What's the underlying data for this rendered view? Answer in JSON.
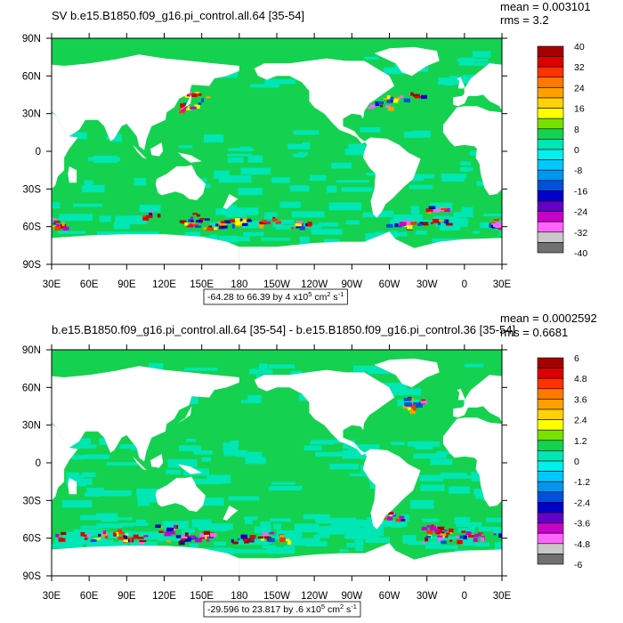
{
  "chart_data": [
    {
      "type": "heatmap",
      "title": "SV b.e15.B1850.f09_g16.pi_control.all.64 [35-54]",
      "stats": [
        "mean = 0.003101",
        "rms = 3.2"
      ],
      "x_ticks": [
        "30E",
        "60E",
        "90E",
        "120E",
        "150E",
        "180",
        "150W",
        "120W",
        "90W",
        "60W",
        "30W",
        "0",
        "30E"
      ],
      "y_ticks": [
        "90N",
        "60N",
        "30N",
        "0",
        "30S",
        "60S",
        "90S"
      ],
      "colorbar": {
        "labels": [
          "40",
          "32",
          "24",
          "16",
          "8",
          "0",
          "-8",
          "-16",
          "-24",
          "-32",
          "-40"
        ],
        "colors": [
          "#a50000",
          "#dc0000",
          "#ff3200",
          "#ff7800",
          "#ffa000",
          "#ffd200",
          "#ffff00",
          "#78e100",
          "#14d250",
          "#00e6b4",
          "#00f0f0",
          "#00c8ff",
          "#0096f0",
          "#0050dc",
          "#0000c8",
          "#6400c8",
          "#c800c8",
          "#ff64ff",
          "#c8c8c8",
          "#707070"
        ]
      },
      "range_note": {
        "prefix": "-64.28 to 66.39 by 4 x10",
        "exp": "5",
        "unit": " cm",
        "unit_exp": "2",
        "tail": " s",
        "tail_exp": "-1"
      }
    },
    {
      "type": "heatmap",
      "title": "b.e15.B1850.f09_g16.pi_control.all.64 [35-54] - b.e15.B1850.f09_g16.pi_control.36 [35-54]",
      "stats": [
        "mean = 0.0002592",
        "rms = 0.6681"
      ],
      "x_ticks": [
        "30E",
        "60E",
        "90E",
        "120E",
        "150E",
        "180",
        "150W",
        "120W",
        "90W",
        "60W",
        "30W",
        "0",
        "30E"
      ],
      "y_ticks": [
        "90N",
        "60N",
        "30N",
        "0",
        "30S",
        "60S",
        "90S"
      ],
      "colorbar": {
        "labels": [
          "6",
          "4.8",
          "3.6",
          "2.4",
          "1.2",
          "0",
          "-1.2",
          "-2.4",
          "-3.6",
          "-4.8",
          "-6"
        ],
        "colors": [
          "#a50000",
          "#dc0000",
          "#ff3200",
          "#ff7800",
          "#ffa000",
          "#ffd200",
          "#ffff00",
          "#78e100",
          "#14d250",
          "#00e6b4",
          "#00f0f0",
          "#00c8ff",
          "#0096f0",
          "#0050dc",
          "#0000c8",
          "#6400c8",
          "#c800c8",
          "#ff64ff",
          "#c8c8c8",
          "#707070"
        ]
      },
      "range_note": {
        "prefix": "-29.596 to 23.817 by .6 x10",
        "exp": "5",
        "unit": " cm",
        "unit_exp": "2",
        "tail": " s",
        "tail_exp": "-1"
      }
    }
  ],
  "colors": {
    "ocean": "#14d250",
    "ocean_cyan": "#00e6b4",
    "land": "#ffffff"
  }
}
